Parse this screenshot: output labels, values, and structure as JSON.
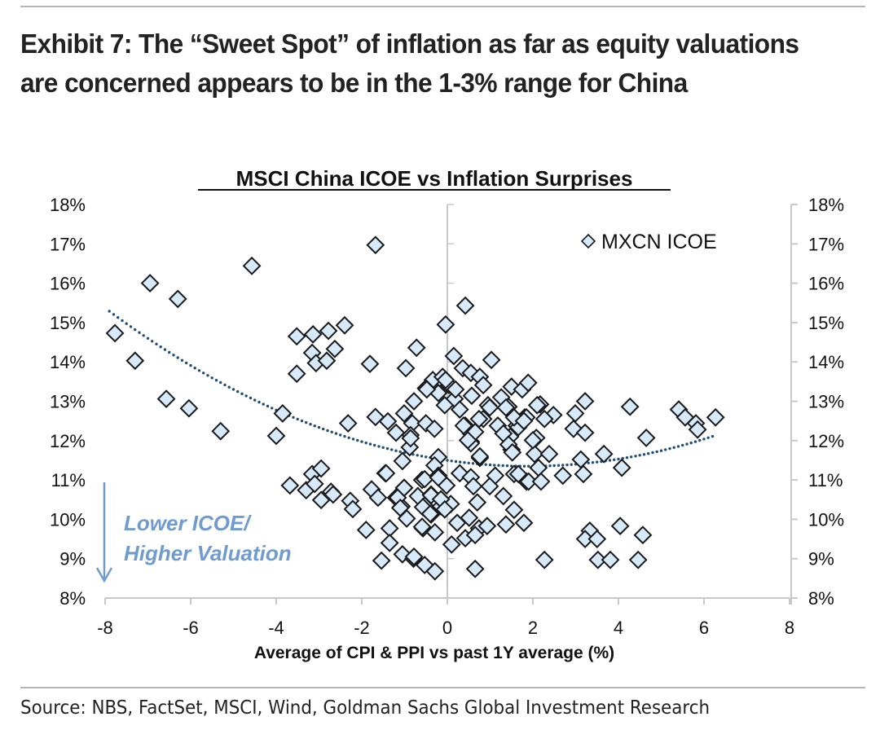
{
  "header": {
    "title": "Exhibit 7: The “Sweet Spot” of inflation as far as equity valuations are concerned appears to be in the 1-3% range for China"
  },
  "footer": {
    "source": "Source: NBS, FactSet, MSCI, Wind, Goldman Sachs Global Investment Research"
  },
  "colors": {
    "marker_fill": "#d6eafc",
    "marker_stroke": "#1a1a1a",
    "trendline": "#1f4e79",
    "annotation": "#6f9bd0",
    "axis": "#c8c8c8"
  },
  "chart_data": {
    "type": "scatter",
    "title": "MSCI China ICOE vs Inflation Surprises",
    "xlabel": "Average of CPI & PPI vs past 1Y average (%)",
    "ylabel": "",
    "xlim": [
      -8,
      8
    ],
    "ylim": [
      8,
      18
    ],
    "x_ticks": [
      "-8",
      "-6",
      "-4",
      "-2",
      "0",
      "2",
      "4",
      "6",
      "8"
    ],
    "x_tick_values": [
      -8,
      -6,
      -4,
      -2,
      0,
      2,
      4,
      6,
      8
    ],
    "y_ticks_left": [
      "18%",
      "17%",
      "16%",
      "15%",
      "14%",
      "13%",
      "12%",
      "11%",
      "10%",
      "9%",
      "8%"
    ],
    "y_ticks_right": [
      "18%",
      "17%",
      "16%",
      "15%",
      "14%",
      "13%",
      "12%",
      "11%",
      "10%",
      "9%",
      "8%"
    ],
    "y_tick_values": [
      18,
      17,
      16,
      15,
      14,
      13,
      12,
      11,
      10,
      9,
      8
    ],
    "grid": false,
    "legend": {
      "label": "MXCN ICOE",
      "position": "top-right",
      "marker": "diamond"
    },
    "annotation": {
      "line1": "Lower ICOE/",
      "line2": "Higher Valuation",
      "arrow": "down"
    },
    "trendline": {
      "type": "polynomial-2",
      "style": "dotted",
      "x_range": [
        -7.9,
        6.2
      ],
      "vertex_x": 1.9,
      "vertex_y": 11.35,
      "a": 0.041
    },
    "series": [
      {
        "name": "MXCN ICOE",
        "points": [
          [
            -6.95,
            16.0
          ],
          [
            -6.3,
            15.6
          ],
          [
            -4.57,
            16.44
          ],
          [
            -7.77,
            14.73
          ],
          [
            -7.3,
            14.03
          ],
          [
            -6.57,
            13.06
          ],
          [
            -6.04,
            12.82
          ],
          [
            -5.3,
            12.24
          ],
          [
            -3.85,
            12.69
          ],
          [
            -4.0,
            12.12
          ],
          [
            -1.68,
            16.97
          ],
          [
            -3.52,
            14.65
          ],
          [
            -3.14,
            14.7
          ],
          [
            -2.78,
            14.79
          ],
          [
            -2.4,
            14.93
          ],
          [
            -3.16,
            14.23
          ],
          [
            -3.07,
            13.97
          ],
          [
            -2.82,
            14.03
          ],
          [
            -2.63,
            14.33
          ],
          [
            -3.52,
            13.7
          ],
          [
            -1.81,
            13.95
          ],
          [
            -0.72,
            14.36
          ],
          [
            -0.97,
            13.84
          ],
          [
            -2.32,
            12.44
          ],
          [
            -1.68,
            12.6
          ],
          [
            -3.68,
            10.86
          ],
          [
            -3.16,
            11.15
          ],
          [
            -2.95,
            11.29
          ],
          [
            -3.3,
            10.74
          ],
          [
            -3.1,
            10.9
          ],
          [
            -2.95,
            10.49
          ],
          [
            -2.72,
            10.7
          ],
          [
            -2.67,
            10.63
          ],
          [
            -2.27,
            10.47
          ],
          [
            -2.21,
            10.26
          ],
          [
            -1.9,
            9.73
          ],
          [
            -1.45,
            11.17
          ],
          [
            -1.77,
            10.76
          ],
          [
            -1.62,
            10.55
          ],
          [
            -1.35,
            9.77
          ],
          [
            -1.35,
            9.4
          ],
          [
            -1.54,
            8.95
          ],
          [
            -1.05,
            9.11
          ],
          [
            -0.79,
            9.0
          ],
          [
            -0.53,
            8.84
          ],
          [
            -0.29,
            8.68
          ],
          [
            0.42,
            15.43
          ],
          [
            -0.04,
            14.95
          ],
          [
            0.15,
            14.15
          ],
          [
            1.03,
            14.05
          ],
          [
            0.36,
            13.84
          ],
          [
            0.55,
            13.72
          ],
          [
            0.76,
            13.62
          ],
          [
            -0.34,
            13.54
          ],
          [
            -0.11,
            13.62
          ],
          [
            0.04,
            13.41
          ],
          [
            -0.5,
            13.33
          ],
          [
            -0.21,
            13.21
          ],
          [
            0.17,
            13.06
          ],
          [
            0.57,
            13.14
          ],
          [
            0.84,
            13.41
          ],
          [
            -0.78,
            13.0
          ],
          [
            -0.06,
            12.9
          ],
          [
            0.29,
            12.79
          ],
          [
            0.95,
            12.9
          ],
          [
            1.5,
            13.37
          ],
          [
            1.75,
            13.3
          ],
          [
            1.89,
            13.47
          ],
          [
            -1.01,
            12.69
          ],
          [
            -1.39,
            12.49
          ],
          [
            -0.82,
            12.44
          ],
          [
            -0.5,
            12.44
          ],
          [
            -0.3,
            12.3
          ],
          [
            0.42,
            12.38
          ],
          [
            0.84,
            12.55
          ],
          [
            1.18,
            12.38
          ],
          [
            1.43,
            12.86
          ],
          [
            1.62,
            12.38
          ],
          [
            1.81,
            12.59
          ],
          [
            -1.2,
            12.2
          ],
          [
            0.55,
            12.18
          ],
          [
            1.47,
            12.1
          ],
          [
            -0.86,
            12.14
          ],
          [
            0.55,
            11.97
          ],
          [
            -0.88,
            11.83
          ],
          [
            0.55,
            11.93
          ],
          [
            1.5,
            11.77
          ],
          [
            -1.05,
            11.48
          ],
          [
            -0.21,
            11.58
          ],
          [
            0.76,
            11.56
          ],
          [
            -0.3,
            11.37
          ],
          [
            -1.43,
            11.17
          ],
          [
            -0.59,
            11.0
          ],
          [
            -0.21,
            11.11
          ],
          [
            0.29,
            11.17
          ],
          [
            0.55,
            11.07
          ],
          [
            1.12,
            11.11
          ],
          [
            1.56,
            11.15
          ],
          [
            1.85,
            10.96
          ],
          [
            -1.01,
            10.8
          ],
          [
            -1.2,
            10.55
          ],
          [
            -0.69,
            10.59
          ],
          [
            -0.38,
            10.63
          ],
          [
            -0.02,
            10.86
          ],
          [
            0.61,
            10.84
          ],
          [
            0.99,
            10.84
          ],
          [
            1.31,
            10.59
          ],
          [
            -1.07,
            10.33
          ],
          [
            -0.53,
            10.35
          ],
          [
            -0.15,
            10.33
          ],
          [
            0.08,
            10.39
          ],
          [
            0.7,
            10.43
          ],
          [
            1.56,
            10.24
          ],
          [
            -0.95,
            10.02
          ],
          [
            -0.38,
            10.12
          ],
          [
            -0.57,
            9.77
          ],
          [
            -0.29,
            9.67
          ],
          [
            0.23,
            9.91
          ],
          [
            0.51,
            10.04
          ],
          [
            0.74,
            9.77
          ],
          [
            0.93,
            9.83
          ],
          [
            1.37,
            9.87
          ],
          [
            1.79,
            9.91
          ],
          [
            0.42,
            9.52
          ],
          [
            0.65,
            9.6
          ],
          [
            0.1,
            9.36
          ],
          [
            -0.78,
            9.05
          ],
          [
            0.65,
            8.74
          ],
          [
            2.17,
            12.92
          ],
          [
            3.22,
            13.0
          ],
          [
            2.48,
            12.65
          ],
          [
            2.27,
            12.55
          ],
          [
            2.99,
            12.69
          ],
          [
            1.85,
            12.59
          ],
          [
            4.27,
            12.86
          ],
          [
            5.41,
            12.79
          ],
          [
            5.56,
            12.59
          ],
          [
            5.81,
            12.44
          ],
          [
            5.85,
            12.28
          ],
          [
            6.27,
            12.59
          ],
          [
            2.95,
            12.3
          ],
          [
            3.22,
            12.2
          ],
          [
            1.66,
            12.34
          ],
          [
            2.08,
            12.07
          ],
          [
            4.65,
            12.07
          ],
          [
            2.04,
            11.66
          ],
          [
            2.38,
            11.66
          ],
          [
            3.12,
            11.52
          ],
          [
            3.66,
            11.66
          ],
          [
            2.13,
            11.31
          ],
          [
            4.08,
            11.31
          ],
          [
            1.66,
            11.15
          ],
          [
            1.9,
            10.96
          ],
          [
            2.19,
            10.96
          ],
          [
            2.7,
            11.11
          ],
          [
            3.18,
            11.15
          ],
          [
            3.33,
            9.71
          ],
          [
            3.22,
            9.5
          ],
          [
            3.5,
            9.5
          ],
          [
            4.04,
            9.83
          ],
          [
            4.57,
            9.6
          ],
          [
            2.27,
            8.97
          ],
          [
            3.52,
            8.97
          ],
          [
            3.81,
            8.97
          ],
          [
            4.46,
            8.97
          ],
          [
            -1.16,
            10.55
          ],
          [
            -1.01,
            10.8
          ],
          [
            -1.1,
            10.29
          ],
          [
            -0.53,
            11.02
          ],
          [
            -0.21,
            11.06
          ],
          [
            -0.38,
            10.61
          ],
          [
            -0.15,
            10.51
          ],
          [
            -0.57,
            10.31
          ],
          [
            -0.06,
            10.25
          ],
          [
            -0.4,
            10.14
          ],
          [
            -0.59,
            9.81
          ],
          [
            -0.04,
            13.54
          ],
          [
            0.19,
            13.3
          ],
          [
            1.26,
            13.1
          ],
          [
            0.99,
            12.84
          ],
          [
            1.37,
            12.84
          ],
          [
            2.1,
            12.9
          ],
          [
            0.74,
            12.55
          ],
          [
            1.56,
            12.59
          ],
          [
            1.79,
            12.5
          ],
          [
            0.38,
            12.38
          ],
          [
            0.65,
            12.22
          ],
          [
            0.48,
            12.01
          ],
          [
            1.31,
            12.18
          ],
          [
            1.43,
            11.9
          ],
          [
            2.0,
            12.01
          ],
          [
            1.52,
            11.7
          ],
          [
            0.76,
            11.6
          ],
          [
            -0.48,
            13.3
          ],
          [
            -0.86,
            12.06
          ]
        ]
      }
    ]
  }
}
